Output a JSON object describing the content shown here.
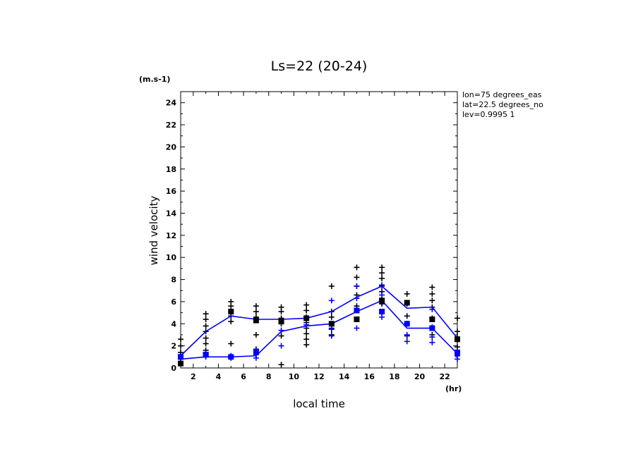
{
  "chart_data": {
    "type": "line",
    "title": "Ls=22 (20-24)",
    "ylabel": "wind velocity",
    "yunit": "(m.s-1)",
    "xlabel": "local time",
    "xunit": "(hr)",
    "xlim": [
      1,
      23
    ],
    "ylim": [
      0,
      25
    ],
    "xticks": [
      2,
      4,
      6,
      8,
      10,
      12,
      14,
      16,
      18,
      20,
      22
    ],
    "yticks": [
      0,
      2,
      4,
      6,
      8,
      10,
      12,
      14,
      16,
      18,
      20,
      22,
      24
    ],
    "info_lines": [
      "lon=75 degrees_eas",
      "lat=22.5 degrees_no",
      "lev=0.9995 1"
    ],
    "colors": {
      "black": "#000000",
      "blue": "#0000ff"
    },
    "x": [
      1,
      3,
      5,
      7,
      9,
      11,
      13,
      15,
      17,
      19,
      21,
      23
    ],
    "series": [
      {
        "color": "blue",
        "style": "line",
        "values": [
          1.1,
          3.3,
          4.7,
          4.4,
          4.4,
          4.5,
          5.1,
          6.4,
          7.4,
          5.4,
          5.5,
          2.7
        ]
      },
      {
        "color": "blue",
        "style": "line",
        "values": [
          0.8,
          1.0,
          1.0,
          1.1,
          3.3,
          3.8,
          4.0,
          5.1,
          6.1,
          3.6,
          3.6,
          1.3
        ]
      },
      {
        "color": "black",
        "style": "square",
        "values": [
          0.4,
          1.2,
          5.1,
          4.3,
          4.2,
          4.5,
          4.0,
          4.4,
          6.1,
          5.9,
          4.4,
          2.6
        ]
      },
      {
        "color": "blue",
        "style": "square",
        "values": [
          1.0,
          1.2,
          1.0,
          1.5,
          null,
          null,
          null,
          5.2,
          5.1,
          4.0,
          3.6,
          1.4
        ]
      }
    ],
    "crosses": [
      {
        "x": 1,
        "black": [
          2.6,
          2.0,
          1.4,
          0.9
        ],
        "blue": [
          1.1,
          0.8
        ]
      },
      {
        "x": 3,
        "black": [
          4.9,
          4.4,
          3.8,
          3.3,
          2.7,
          2.2,
          1.6,
          1.1
        ],
        "blue": [
          1.3,
          1.0
        ]
      },
      {
        "x": 5,
        "black": [
          6.0,
          5.6,
          4.7,
          4.2,
          2.2
        ],
        "blue": [
          1.1,
          0.9
        ]
      },
      {
        "x": 7,
        "black": [
          5.6,
          5.1,
          4.6,
          3.0,
          1.7
        ],
        "blue": [
          1.5,
          1.2,
          0.9
        ]
      },
      {
        "x": 9,
        "black": [
          5.5,
          5.1,
          4.5,
          4.0,
          2.9,
          0.3
        ],
        "blue": [
          3.4,
          2.0
        ]
      },
      {
        "x": 11,
        "black": [
          5.7,
          5.2,
          4.6,
          4.1,
          3.6,
          3.1,
          2.6,
          2.1
        ],
        "blue": [
          4.6,
          3.9
        ]
      },
      {
        "x": 13,
        "black": [
          7.4,
          5.1,
          4.6,
          4.0,
          3.5,
          3.0
        ],
        "blue": [
          6.1,
          3.6,
          2.9
        ]
      },
      {
        "x": 15,
        "black": [
          9.1,
          8.2,
          7.4,
          6.6,
          5.6,
          4.4
        ],
        "blue": [
          7.4,
          6.3,
          5.3,
          3.6
        ]
      },
      {
        "x": 17,
        "black": [
          9.1,
          8.6,
          8.1,
          7.5,
          6.9,
          6.2,
          5.8
        ],
        "blue": [
          7.4,
          6.6,
          5.0,
          4.6
        ]
      },
      {
        "x": 19,
        "black": [
          6.7,
          5.8,
          4.7,
          4.0,
          2.9
        ],
        "blue": [
          4.0,
          3.0,
          2.4
        ]
      },
      {
        "x": 21,
        "black": [
          7.3,
          6.7,
          6.1,
          5.5,
          4.5,
          3.0
        ],
        "blue": [
          5.3,
          3.7,
          2.8,
          2.3
        ]
      },
      {
        "x": 23,
        "black": [
          4.5,
          3.3,
          2.8,
          2.5,
          1.9
        ],
        "blue": [
          1.4,
          1.1,
          0.8
        ]
      }
    ]
  }
}
